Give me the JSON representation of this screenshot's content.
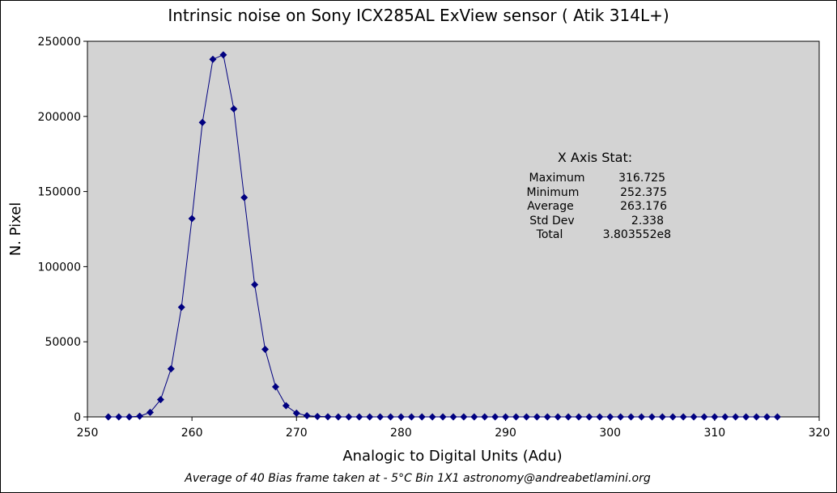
{
  "chart_data": {
    "type": "line",
    "title": "Intrinsic noise on  Sony ICX285AL ExView sensor ( Atik 314L+)",
    "xlabel": "Analogic to Digital Units (Adu)",
    "ylabel": "N. Pixel",
    "xlim": [
      250,
      320
    ],
    "ylim": [
      0,
      250000
    ],
    "xticks": [
      250,
      260,
      270,
      280,
      290,
      300,
      310,
      320
    ],
    "yticks": [
      0,
      50000,
      100000,
      150000,
      200000,
      250000
    ],
    "grid": false,
    "legend": "none",
    "series": [
      {
        "color": "#000080",
        "marker": "diamond",
        "x": [
          252,
          253,
          254,
          255,
          256,
          257,
          258,
          259,
          260,
          261,
          262,
          263,
          264,
          265,
          266,
          267,
          268,
          269,
          270,
          271,
          272,
          273,
          274,
          275,
          276,
          277,
          278,
          279,
          280,
          281,
          282,
          283,
          284,
          285,
          286,
          287,
          288,
          289,
          290,
          291,
          292,
          293,
          294,
          295,
          296,
          297,
          298,
          299,
          300,
          301,
          302,
          303,
          304,
          305,
          306,
          307,
          308,
          309,
          310,
          311,
          312,
          313,
          314,
          315,
          316
        ],
        "y": [
          0,
          0,
          0,
          500,
          3000,
          11500,
          32000,
          73000,
          132000,
          196000,
          238000,
          241000,
          205000,
          146000,
          88000,
          45000,
          20000,
          7500,
          2500,
          800,
          300,
          100,
          0,
          0,
          0,
          0,
          0,
          0,
          0,
          0,
          0,
          0,
          0,
          0,
          0,
          0,
          0,
          0,
          0,
          0,
          0,
          0,
          0,
          0,
          0,
          0,
          0,
          0,
          0,
          0,
          0,
          0,
          0,
          0,
          0,
          0,
          0,
          0,
          0,
          0,
          0,
          0,
          0,
          0,
          0
        ]
      }
    ],
    "stats": {
      "heading": "X Axis Stat:",
      "rows": [
        {
          "label": "Maximum",
          "value": "316.725"
        },
        {
          "label": "Minimum",
          "value": "252.375"
        },
        {
          "label": "Average",
          "value": "263.176"
        },
        {
          "label": "Std Dev",
          "value": "2.338"
        },
        {
          "label": "Total",
          "value": "3.803552e8"
        }
      ]
    },
    "footer": "Average of  40 Bias frame taken at - 5°C     Bin 1X1      astronomy@andreabetlamini.org",
    "colors": {
      "plot_background": "#d3d3d3",
      "series": "#000080"
    }
  }
}
